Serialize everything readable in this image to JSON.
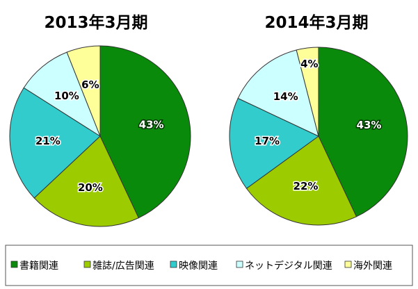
{
  "chart_data": [
    {
      "type": "pie",
      "title": "2013年3月期",
      "slices": [
        {
          "label": "書籍関連",
          "value": 43,
          "display": "43%"
        },
        {
          "label": "雑誌/広告関連",
          "value": 20,
          "display": "20%"
        },
        {
          "label": "映像関連",
          "value": 21,
          "display": "21%"
        },
        {
          "label": "ネットデジタル関連",
          "value": 10,
          "display": "10%"
        },
        {
          "label": "海外関連",
          "value": 6,
          "display": "6%"
        }
      ]
    },
    {
      "type": "pie",
      "title": "2014年3月期",
      "slices": [
        {
          "label": "書籍関連",
          "value": 43,
          "display": "43%"
        },
        {
          "label": "雑誌/広告関連",
          "value": 22,
          "display": "22%"
        },
        {
          "label": "映像関連",
          "value": 17,
          "display": "17%"
        },
        {
          "label": "ネットデジタル関連",
          "value": 14,
          "display": "14%"
        },
        {
          "label": "海外関連",
          "value": 4,
          "display": "4%"
        }
      ]
    }
  ],
  "legend": {
    "items": [
      {
        "label": "書籍関連",
        "color": "#0a8a0a"
      },
      {
        "label": "雑誌/広告関連",
        "color": "#9ccc00"
      },
      {
        "label": "映像関連",
        "color": "#33cccc"
      },
      {
        "label": "ネットデジタル関連",
        "color": "#ccffff"
      },
      {
        "label": "海外関連",
        "color": "#ffff99"
      }
    ]
  },
  "label_colors": [
    "#ffffff",
    "#000000",
    "#000000",
    "#000000",
    "#000000"
  ]
}
